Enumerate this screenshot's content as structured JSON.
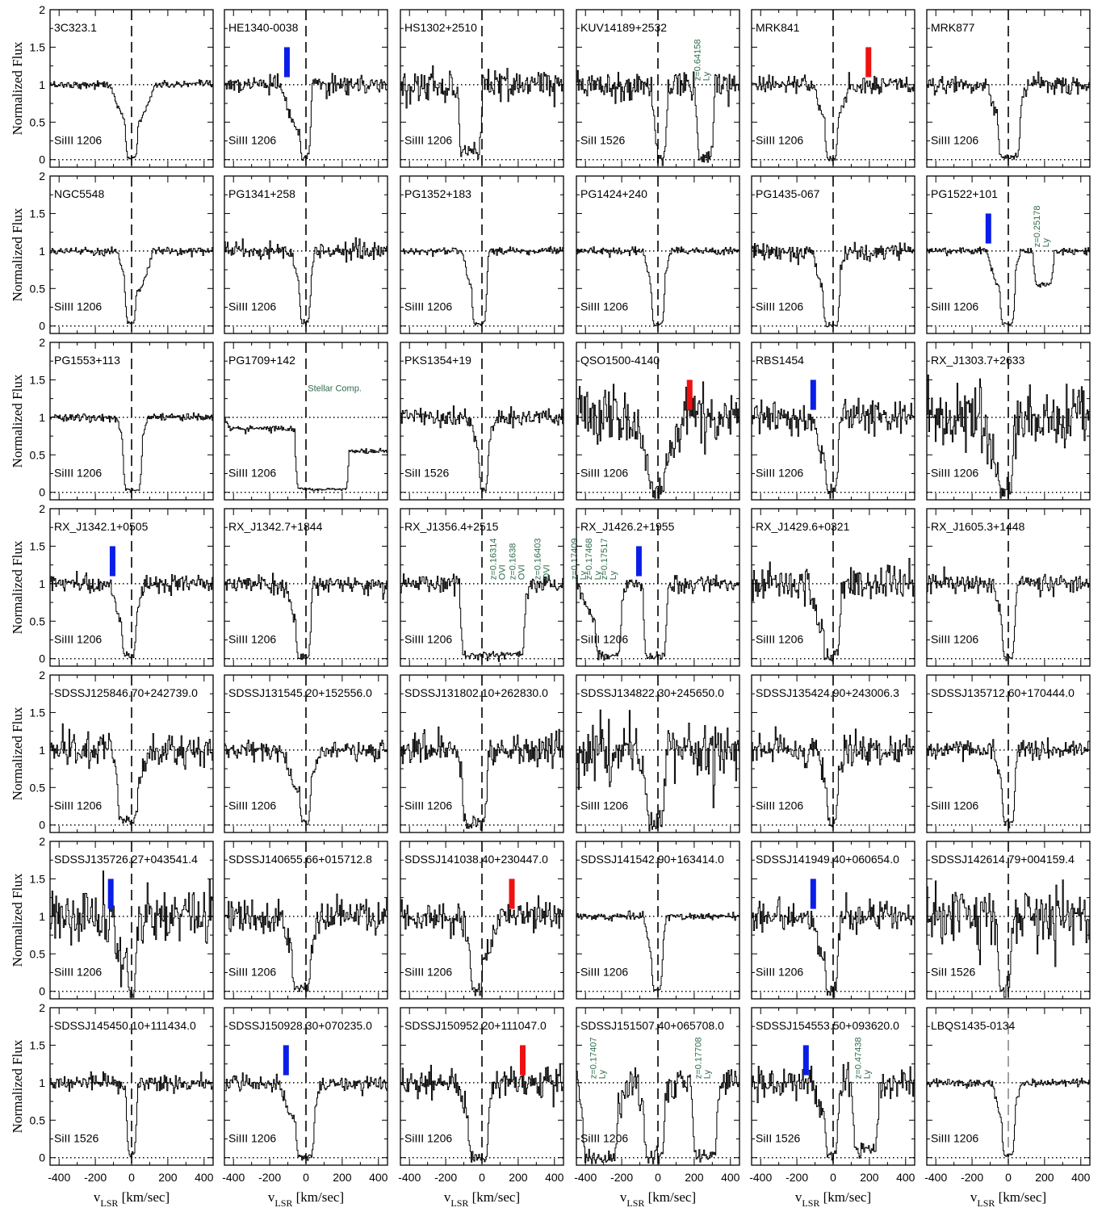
{
  "chart_data": {
    "type": "line",
    "grid_rows": 7,
    "grid_cols": 6,
    "xlabel_main": "v",
    "xlabel_sub": "LSR",
    "xlabel_unit": " [km/sec]",
    "ylabel": "Normalized Flux",
    "xlim": [
      -450,
      450
    ],
    "ylim": [
      -0.1,
      2.0
    ],
    "x_ticks": [
      "-400",
      "-200",
      "0",
      "200",
      "400"
    ],
    "y_ticks": [
      "0",
      "0.5",
      "1",
      "1.5",
      "2"
    ],
    "colors": {
      "line": "#000000",
      "blue_marker": "#0a1ee8",
      "red_marker": "#ee1111",
      "annotation": "#2e6b4a"
    },
    "panels": [
      {
        "name": "3C323.1",
        "ion": "SiIII 1206",
        "profile": [
          [
            -120,
            130,
            1.0
          ],
          [
            -20,
            20,
            0.03
          ]
        ],
        "noise": "low",
        "markers": [],
        "annos": []
      },
      {
        "name": "HE1340-0038",
        "ion": "SiIII 1206",
        "profile": [
          [
            -140,
            40,
            1.0
          ],
          [
            -40,
            10,
            0.35
          ],
          [
            -20,
            10,
            0.02
          ]
        ],
        "noise": "med",
        "markers": [
          {
            "v": -105,
            "color": "blue"
          }
        ],
        "annos": []
      },
      {
        "name": "HS1302+2510",
        "ion": "SiIII 1206",
        "profile": [
          [
            -150,
            10,
            1.0
          ],
          [
            -110,
            -20,
            0.1
          ]
        ],
        "noise": "high",
        "markers": [],
        "annos": []
      },
      {
        "name": "KUV14189+2532",
        "ion": "SiII 1526",
        "profile": [
          [
            -40,
            50,
            1.0
          ],
          [
            0,
            30,
            0.02
          ],
          [
            200,
            310,
            1.0
          ],
          [
            230,
            290,
            0.05
          ]
        ],
        "noise": "high",
        "markers": [],
        "annos": [
          {
            "v": 265,
            "lines": [
              "Ly",
              "z=0.64158"
            ]
          }
        ]
      },
      {
        "name": "MRK841",
        "ion": "SiIII 1206",
        "profile": [
          [
            -110,
            90,
            1.0
          ],
          [
            -30,
            10,
            0.03
          ]
        ],
        "noise": "med",
        "markers": [
          {
            "v": 195,
            "color": "red"
          }
        ],
        "annos": []
      },
      {
        "name": "MRK877",
        "ion": "SiIII 1206",
        "profile": [
          [
            -120,
            110,
            1.0
          ],
          [
            -40,
            50,
            0.03
          ]
        ],
        "noise": "med",
        "markers": [],
        "annos": []
      },
      {
        "name": "NGC5548",
        "ion": "SiIII 1206",
        "profile": [
          [
            -80,
            120,
            1.0
          ],
          [
            -20,
            10,
            0.04
          ]
        ],
        "noise": "low",
        "markers": [],
        "annos": []
      },
      {
        "name": "PG1341+258",
        "ion": "SiIII 1206",
        "profile": [
          [
            -80,
            50,
            1.0
          ],
          [
            -20,
            10,
            0.03
          ]
        ],
        "noise": "med",
        "markers": [],
        "annos": []
      },
      {
        "name": "PG1352+183",
        "ion": "SiIII 1206",
        "profile": [
          [
            -110,
            40,
            1.0
          ],
          [
            -40,
            10,
            0.03
          ]
        ],
        "noise": "low",
        "markers": [],
        "annos": []
      },
      {
        "name": "PG1424+240",
        "ion": "SiIII 1206",
        "profile": [
          [
            -80,
            70,
            1.0
          ],
          [
            -20,
            20,
            0.02
          ]
        ],
        "noise": "low",
        "markers": [],
        "annos": []
      },
      {
        "name": "PG1435-067",
        "ion": "SiIII 1206",
        "profile": [
          [
            -120,
            70,
            1.0
          ],
          [
            -40,
            20,
            0.02
          ]
        ],
        "noise": "med",
        "markers": [],
        "annos": []
      },
      {
        "name": "PG1522+101",
        "ion": "SiIII 1206",
        "profile": [
          [
            -120,
            70,
            1.0
          ],
          [
            -30,
            20,
            0.02
          ],
          [
            160,
            230,
            0.55
          ]
        ],
        "noise": "low",
        "markers": [
          {
            "v": -110,
            "color": "blue"
          }
        ],
        "annos": [
          {
            "v": 205,
            "lines": [
              "Ly",
              "z=0.25178"
            ]
          }
        ]
      },
      {
        "name": "PG1553+113",
        "ion": "SiIII 1206",
        "profile": [
          [
            -80,
            90,
            1.0
          ],
          [
            -30,
            40,
            0.03
          ]
        ],
        "noise": "low",
        "markers": [],
        "annos": []
      },
      {
        "name": "PG1709+142",
        "ion": "SiIII 1206",
        "profile": [
          [
            -420,
            40,
            0.85
          ],
          [
            -40,
            220,
            0.04
          ],
          [
            220,
            450,
            0.55
          ]
        ],
        "noise": "low",
        "markers": [],
        "annos": [],
        "text": "Stellar Comp."
      },
      {
        "name": "PKS1354+19",
        "ion": "SiII 1526",
        "profile": [
          [
            -60,
            70,
            1.0
          ],
          [
            0,
            20,
            0.03
          ]
        ],
        "noise": "med",
        "markers": [],
        "annos": []
      },
      {
        "name": "QSO1500-4140",
        "ion": "SiIII 1206",
        "profile": [
          [
            -150,
            150,
            1.0
          ],
          [
            -40,
            30,
            0.0
          ]
        ],
        "noise": "vhigh",
        "markers": [
          {
            "v": 175,
            "color": "red"
          }
        ],
        "annos": []
      },
      {
        "name": "RBS1454",
        "ion": "SiIII 1206",
        "profile": [
          [
            -120,
            50,
            1.0
          ],
          [
            -30,
            10,
            0.02
          ]
        ],
        "noise": "high",
        "markers": [
          {
            "v": -110,
            "color": "blue"
          }
        ],
        "annos": []
      },
      {
        "name": "RX_J1303.7+2633",
        "ion": "SiIII 1206",
        "profile": [
          [
            -140,
            40,
            1.0
          ],
          [
            -40,
            10,
            0.02
          ]
        ],
        "noise": "vhigh",
        "markers": [],
        "annos": []
      },
      {
        "name": "RX_J1342.1+0505",
        "ion": "SiIII 1206",
        "profile": [
          [
            -120,
            70,
            1.0
          ],
          [
            -40,
            10,
            0.05
          ]
        ],
        "noise": "med",
        "markers": [
          {
            "v": -105,
            "color": "blue"
          }
        ],
        "annos": []
      },
      {
        "name": "RX_J1342.7+1844",
        "ion": "SiIII 1206",
        "profile": [
          [
            -110,
            40,
            1.0
          ],
          [
            -40,
            10,
            0.02
          ]
        ],
        "noise": "med",
        "markers": [],
        "annos": []
      },
      {
        "name": "RX_J1356.4+2515",
        "ion": "SiIII 1206",
        "profile": [
          [
            -120,
            280,
            1.0
          ],
          [
            -100,
            220,
            0.05
          ]
        ],
        "noise": "med",
        "markers": [],
        "annos": [
          {
            "v": 110,
            "lines": [
              "OVI",
              "z=0.16314"
            ]
          },
          {
            "v": 215,
            "lines": [
              "OVI",
              "z=0.1638"
            ]
          },
          {
            "v": 355,
            "lines": [
              "OVI",
              "z=0.16403"
            ]
          }
        ]
      },
      {
        "name": "RX_J1426.2+1955",
        "ion": "SiIII 1206",
        "profile": [
          [
            -450,
            -160,
            1.0
          ],
          [
            -330,
            -220,
            0.05
          ],
          [
            -100,
            60,
            1.0
          ],
          [
            -60,
            30,
            0.02
          ]
        ],
        "noise": "med",
        "markers": [
          {
            "v": -105,
            "color": "blue"
          }
        ],
        "annos": [
          {
            "v": -415,
            "lines": [
              "Ly",
              "z=0.17409"
            ]
          },
          {
            "v": -335,
            "lines": [
              "Ly",
              "z=0.17468"
            ]
          },
          {
            "v": -250,
            "lines": [
              "Ly",
              "z=0.17517"
            ]
          }
        ]
      },
      {
        "name": "RX_J1429.6+0321",
        "ion": "SiIII 1206",
        "profile": [
          [
            -140,
            50,
            1.0
          ],
          [
            -40,
            20,
            0.05
          ]
        ],
        "noise": "high",
        "markers": [],
        "annos": []
      },
      {
        "name": "RX_J1605.3+1448",
        "ion": "SiIII 1206",
        "profile": [
          [
            -80,
            60,
            1.0
          ],
          [
            -20,
            20,
            0.03
          ]
        ],
        "noise": "med",
        "markers": [],
        "annos": []
      },
      {
        "name": "SDSSJ125846.70+242739.0",
        "ion": "SiIII 1206",
        "profile": [
          [
            -120,
            100,
            1.0
          ],
          [
            -60,
            20,
            0.05
          ]
        ],
        "noise": "high",
        "markers": [],
        "annos": []
      },
      {
        "name": "SDSSJ131545.20+152556.0",
        "ion": "SiIII 1206",
        "profile": [
          [
            -130,
            80,
            1.0
          ],
          [
            -20,
            10,
            0.03
          ]
        ],
        "noise": "med",
        "markers": [],
        "annos": []
      },
      {
        "name": "SDSSJ131802.10+262830.0",
        "ion": "SiIII 1206",
        "profile": [
          [
            -140,
            50,
            1.0
          ],
          [
            -90,
            10,
            0.03
          ]
        ],
        "noise": "high",
        "markers": [],
        "annos": []
      },
      {
        "name": "SDSSJ134822.30+245650.0",
        "ion": "SiIII 1206",
        "profile": [
          [
            -110,
            60,
            1.0
          ],
          [
            -50,
            20,
            0.02
          ]
        ],
        "noise": "vhigh",
        "markers": [],
        "annos": []
      },
      {
        "name": "SDSSJ135424.90+243006.3",
        "ion": "SiIII 1206",
        "profile": [
          [
            -80,
            60,
            1.0
          ],
          [
            -20,
            10,
            0.03
          ]
        ],
        "noise": "high",
        "markers": [],
        "annos": []
      },
      {
        "name": "SDSSJ135712.60+170444.0",
        "ion": "SiIII 1206",
        "profile": [
          [
            -80,
            60,
            1.0
          ],
          [
            -20,
            20,
            0.04
          ]
        ],
        "noise": "med",
        "markers": [],
        "annos": []
      },
      {
        "name": "SDSSJ135726.27+043541.4",
        "ion": "SiIII 1206",
        "profile": [
          [
            -120,
            60,
            1.0
          ],
          [
            -10,
            10,
            0.0
          ]
        ],
        "noise": "vhigh",
        "markers": [
          {
            "v": -115,
            "color": "blue"
          }
        ],
        "annos": []
      },
      {
        "name": "SDSSJ140655.66+015712.8",
        "ion": "SiIII 1206",
        "profile": [
          [
            -150,
            80,
            1.0
          ],
          [
            -60,
            10,
            0.03
          ]
        ],
        "noise": "high",
        "markers": [],
        "annos": []
      },
      {
        "name": "SDSSJ141038.40+230447.0",
        "ion": "SiIII 1206",
        "profile": [
          [
            -120,
            100,
            1.0
          ],
          [
            -50,
            -10,
            0.03
          ]
        ],
        "noise": "high",
        "markers": [
          {
            "v": 165,
            "color": "red"
          }
        ],
        "annos": []
      },
      {
        "name": "SDSSJ141542.90+163414.0",
        "ion": "SiIII 1206",
        "profile": [
          [
            -80,
            50,
            1.0
          ],
          [
            -20,
            10,
            0.02
          ]
        ],
        "noise": "low",
        "markers": [],
        "annos": []
      },
      {
        "name": "SDSSJ141949.40+060654.0",
        "ion": "SiIII 1206",
        "profile": [
          [
            -130,
            60,
            1.0
          ],
          [
            -30,
            10,
            0.02
          ]
        ],
        "noise": "high",
        "markers": [
          {
            "v": -110,
            "color": "blue"
          }
        ],
        "annos": []
      },
      {
        "name": "SDSSJ142614.79+004159.4",
        "ion": "SiII 1526",
        "profile": [
          [
            -80,
            20,
            1.0
          ],
          [
            -40,
            0,
            0.02
          ]
        ],
        "noise": "vhigh",
        "markers": [],
        "annos": []
      },
      {
        "name": "SDSSJ145450.10+111434.0",
        "ion": "SiII 1526",
        "profile": [
          [
            -60,
            30,
            0.95
          ],
          [
            -10,
            10,
            0.05
          ]
        ],
        "noise": "med",
        "markers": [],
        "annos": []
      },
      {
        "name": "SDSSJ150928.30+070235.0",
        "ion": "SiIII 1206",
        "profile": [
          [
            -150,
            90,
            1.0
          ],
          [
            -40,
            30,
            0.0
          ]
        ],
        "noise": "med",
        "markers": [
          {
            "v": -110,
            "color": "blue"
          }
        ],
        "annos": []
      },
      {
        "name": "SDSSJ150952.20+111047.0",
        "ion": "SiIII 1206",
        "profile": [
          [
            -130,
            80,
            1.0
          ],
          [
            -60,
            20,
            0.0
          ]
        ],
        "noise": "high",
        "markers": [
          {
            "v": 225,
            "color": "red"
          }
        ],
        "annos": []
      },
      {
        "name": "SDSSJ151507.40+065708.0",
        "ion": "SiIII 1206",
        "profile": [
          [
            -450,
            -170,
            1.0
          ],
          [
            -400,
            -240,
            0.0
          ],
          [
            -120,
            60,
            1.0
          ],
          [
            -60,
            20,
            0.0
          ],
          [
            210,
            310,
            0.05
          ]
        ],
        "noise": "high",
        "markers": [],
        "annos": [
          {
            "v": -310,
            "lines": [
              "Ly",
              "z=0.17407"
            ]
          },
          {
            "v": 270,
            "lines": [
              "Ly",
              "z=0.17708"
            ]
          }
        ]
      },
      {
        "name": "SDSSJ154553.50+093620.0",
        "ion": "SiII 1526",
        "profile": [
          [
            -110,
            60,
            1.0
          ],
          [
            -30,
            10,
            0.05
          ],
          [
            130,
            230,
            0.1
          ]
        ],
        "noise": "high",
        "markers": [
          {
            "v": -150,
            "color": "blue"
          }
        ],
        "annos": [
          {
            "v": 185,
            "lines": [
              "Ly",
              "z=0.47438"
            ]
          }
        ]
      },
      {
        "name": "LBQS1435-0134",
        "ion": "SiIII 1206",
        "profile": [
          [
            -90,
            70,
            1.0
          ],
          [
            -20,
            20,
            0.03
          ]
        ],
        "noise": "low",
        "markers": [],
        "annos": [],
        "grey_center": true
      }
    ]
  }
}
